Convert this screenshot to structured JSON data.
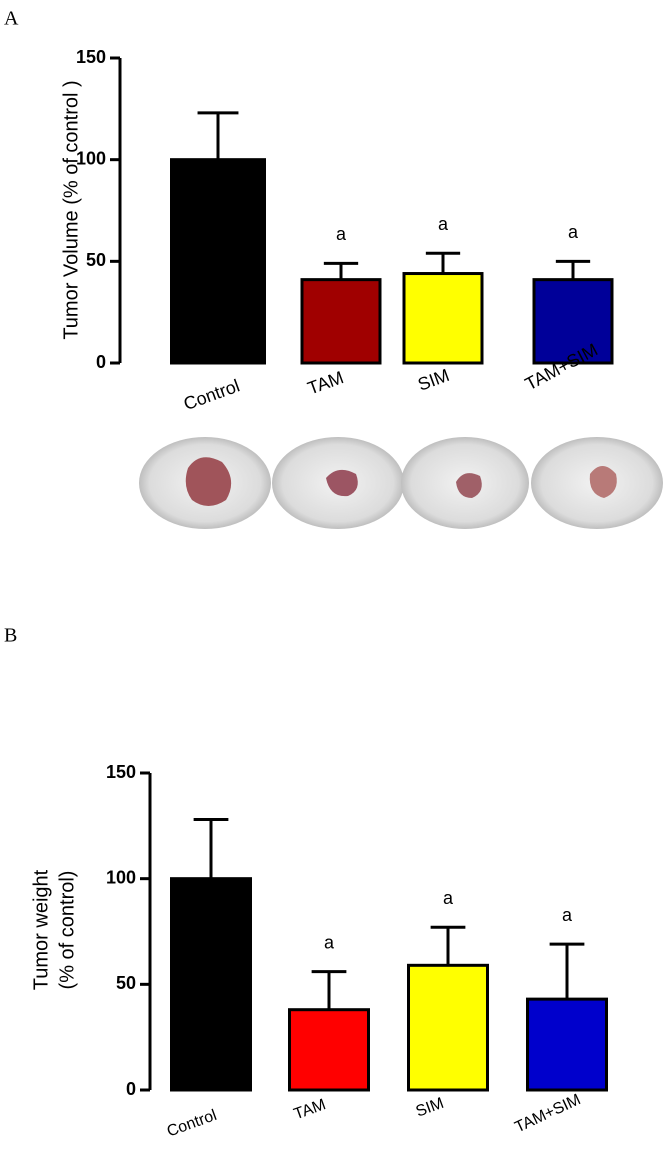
{
  "chart_data": [
    {
      "type": "bar",
      "panel": "A",
      "ylabel": "Tumor Volume (% of control )",
      "categories": [
        "Control",
        "TAM",
        "SIM",
        "TAM+SIM"
      ],
      "values": [
        100,
        41,
        44,
        41
      ],
      "errors": [
        23,
        8,
        10,
        9
      ],
      "colors": [
        "#000000",
        "#a00000",
        "#ffff00",
        "#000099"
      ],
      "annotations": [
        null,
        "a",
        "a",
        "a"
      ],
      "ylim": [
        0,
        150
      ],
      "yticks": [
        0,
        50,
        100,
        150
      ]
    },
    {
      "type": "bar",
      "panel": "B",
      "ylabel_lines": [
        "Tumor weight",
        "(% of control)"
      ],
      "categories": [
        "Control",
        "TAM",
        "SIM",
        "TAM+SIM"
      ],
      "values": [
        100,
        38,
        59,
        43
      ],
      "errors": [
        28,
        18,
        18,
        26
      ],
      "colors": [
        "#000000",
        "#ff0000",
        "#ffff00",
        "#0000cc"
      ],
      "annotations": [
        null,
        "a",
        "a",
        "a"
      ],
      "ylim": [
        0,
        150
      ],
      "yticks": [
        0,
        50,
        100,
        150
      ]
    }
  ]
}
